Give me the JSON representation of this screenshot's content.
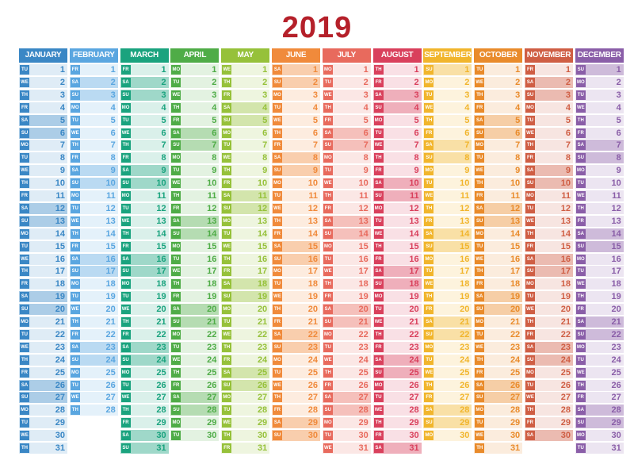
{
  "year": "2019",
  "months": [
    {
      "name": "JANUARY",
      "color": "#3a87c5",
      "start": 1,
      "days": 31
    },
    {
      "name": "FEBRUARY",
      "color": "#5aa6e0",
      "start": 4,
      "days": 28
    },
    {
      "name": "MARCH",
      "color": "#1aa37e",
      "start": 4,
      "days": 31
    },
    {
      "name": "APRIL",
      "color": "#4fac47",
      "start": 0,
      "days": 30
    },
    {
      "name": "MAY",
      "color": "#96c13a",
      "start": 2,
      "days": 31
    },
    {
      "name": "JUNE",
      "color": "#f08a3b",
      "start": 5,
      "days": 30
    },
    {
      "name": "JULY",
      "color": "#e86a5d",
      "start": 0,
      "days": 31
    },
    {
      "name": "AUGUST",
      "color": "#d9405c",
      "start": 3,
      "days": 31
    },
    {
      "name": "SEPTEMBER",
      "color": "#f1b52c",
      "start": 6,
      "days": 30
    },
    {
      "name": "OCTOBER",
      "color": "#e98b2b",
      "start": 1,
      "days": 31
    },
    {
      "name": "NOVEMBER",
      "color": "#cf5e44",
      "start": 4,
      "days": 30
    },
    {
      "name": "DECEMBER",
      "color": "#8a5ea8",
      "start": 6,
      "days": 31
    }
  ],
  "weekday_abbr": [
    "MO",
    "TU",
    "WE",
    "TH",
    "FR",
    "SA",
    "SU"
  ]
}
